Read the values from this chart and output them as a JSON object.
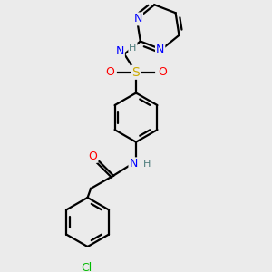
{
  "background_color": "#ebebeb",
  "atom_colors": {
    "C": "#000000",
    "H": "#4a7a7a",
    "N": "#0000ff",
    "O": "#ff0000",
    "S": "#ccaa00",
    "Cl": "#00bb00"
  },
  "bond_color": "#000000",
  "bond_width": 1.6,
  "font_size": 9,
  "figsize": [
    3.0,
    3.0
  ],
  "dpi": 100,
  "xlim": [
    0.5,
    3.5
  ],
  "ylim": [
    0.2,
    4.0
  ]
}
